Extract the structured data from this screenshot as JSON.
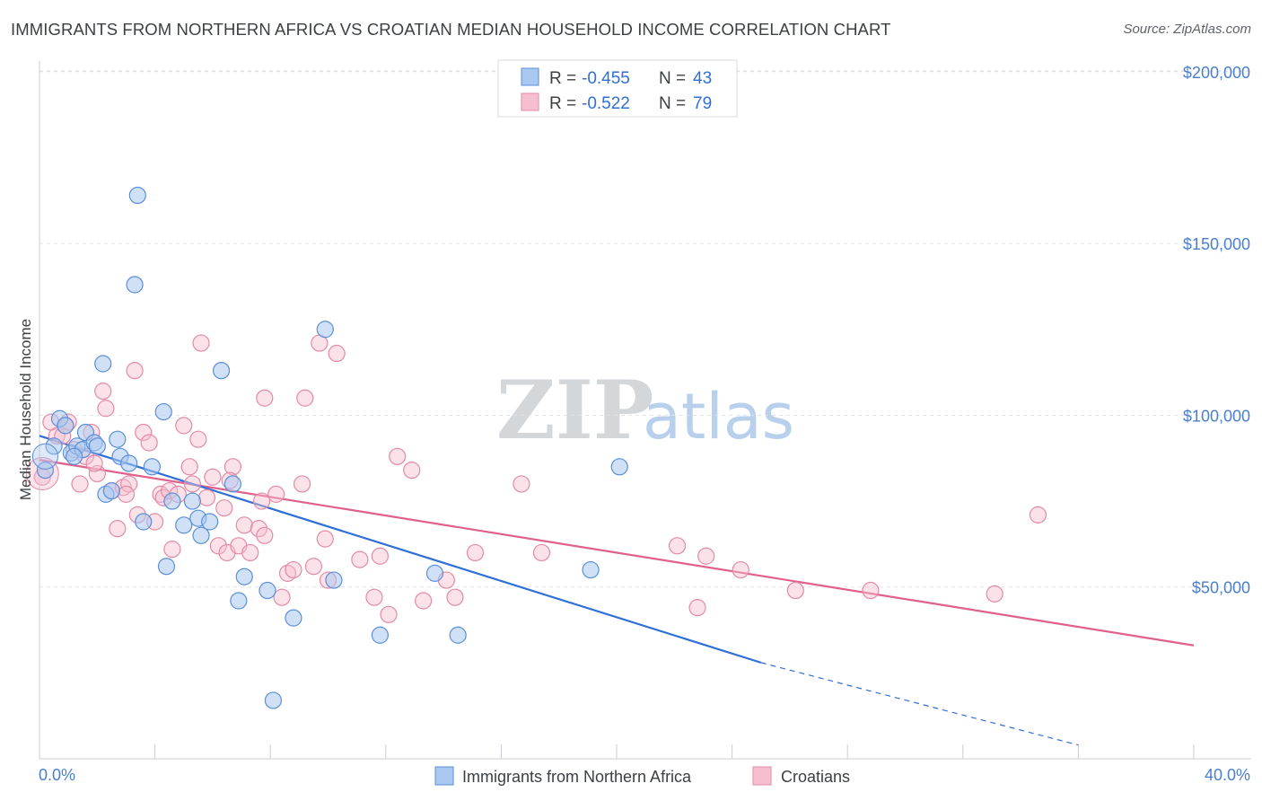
{
  "title": "IMMIGRANTS FROM NORTHERN AFRICA VS CROATIAN MEDIAN HOUSEHOLD INCOME CORRELATION CHART",
  "source": "Source: ZipAtlas.com",
  "watermark": {
    "part1": "ZIP",
    "part2": "atlas"
  },
  "colors": {
    "blue_fill": "#a9c8f0",
    "blue_stroke": "#5a8fd8",
    "blue_line": "#2f6fd6",
    "pink_fill": "#f6bfcf",
    "pink_stroke": "#e38aa6",
    "pink_line": "#e0608c",
    "grid": "#dfe3e8",
    "axis_text": "#4a7fcf"
  },
  "chart_data": {
    "type": "scatter",
    "title": "IMMIGRANTS FROM NORTHERN AFRICA VS CROATIAN MEDIAN HOUSEHOLD INCOME CORRELATION CHART",
    "xlabel": "",
    "ylabel": "Median Household Income",
    "xlim": [
      0,
      40
    ],
    "ylim": [
      0,
      205000
    ],
    "x_tick_labels": [
      "0.0%",
      "40.0%"
    ],
    "y_ticks": [
      50000,
      100000,
      150000,
      200000
    ],
    "y_tick_labels": [
      "$50,000",
      "$100,000",
      "$150,000",
      "$200,000"
    ],
    "grid": "horizontal dashed",
    "legend_position": "top-center",
    "stats": [
      {
        "r_label": "R = ",
        "r": "-0.455",
        "n_label": "N = ",
        "n": "43"
      },
      {
        "r_label": "R = ",
        "r": "-0.522",
        "n_label": "N = ",
        "n": "79"
      }
    ],
    "series": [
      {
        "name": "Immigrants from Northern Africa",
        "color": "#5a8fd8",
        "trend": {
          "x": [
            0,
            25
          ],
          "y": [
            94000,
            28000
          ],
          "dashed_to": [
            36,
            4000
          ]
        },
        "points": [
          [
            0.2,
            84000
          ],
          [
            0.5,
            91000
          ],
          [
            0.7,
            99000
          ],
          [
            0.9,
            97000
          ],
          [
            1.1,
            89000
          ],
          [
            1.3,
            91000
          ],
          [
            1.5,
            90000
          ],
          [
            1.6,
            95000
          ],
          [
            1.9,
            92000
          ],
          [
            2.2,
            115000
          ],
          [
            2.3,
            77000
          ],
          [
            2.5,
            78000
          ],
          [
            2.7,
            93000
          ],
          [
            2.8,
            88000
          ],
          [
            3.1,
            86000
          ],
          [
            3.4,
            164000
          ],
          [
            3.3,
            138000
          ],
          [
            3.6,
            69000
          ],
          [
            3.9,
            85000
          ],
          [
            4.3,
            101000
          ],
          [
            4.4,
            56000
          ],
          [
            4.6,
            75000
          ],
          [
            5.0,
            68000
          ],
          [
            5.3,
            75000
          ],
          [
            5.5,
            70000
          ],
          [
            5.6,
            65000
          ],
          [
            5.9,
            69000
          ],
          [
            6.3,
            113000
          ],
          [
            6.7,
            80000
          ],
          [
            6.9,
            46000
          ],
          [
            7.1,
            53000
          ],
          [
            7.9,
            49000
          ],
          [
            8.1,
            17000
          ],
          [
            8.8,
            41000
          ],
          [
            9.9,
            125000
          ],
          [
            10.2,
            52000
          ],
          [
            11.8,
            36000
          ],
          [
            13.7,
            54000
          ],
          [
            14.5,
            36000
          ],
          [
            19.1,
            55000
          ],
          [
            20.1,
            85000
          ],
          [
            1.2,
            88000
          ],
          [
            2.0,
            91000
          ]
        ]
      },
      {
        "name": "Croatians",
        "color": "#e38aa6",
        "trend": {
          "x": [
            0,
            40
          ],
          "y": [
            87000,
            33000
          ]
        },
        "points": [
          [
            0.1,
            82000
          ],
          [
            0.4,
            98000
          ],
          [
            0.6,
            94000
          ],
          [
            0.8,
            94000
          ],
          [
            1.0,
            98000
          ],
          [
            1.2,
            90000
          ],
          [
            1.4,
            80000
          ],
          [
            1.6,
            88000
          ],
          [
            1.8,
            95000
          ],
          [
            2.0,
            83000
          ],
          [
            2.2,
            107000
          ],
          [
            2.3,
            102000
          ],
          [
            2.5,
            78000
          ],
          [
            2.7,
            67000
          ],
          [
            2.9,
            79000
          ],
          [
            3.1,
            80000
          ],
          [
            3.3,
            113000
          ],
          [
            3.4,
            71000
          ],
          [
            3.6,
            95000
          ],
          [
            3.8,
            92000
          ],
          [
            4.0,
            69000
          ],
          [
            4.2,
            77000
          ],
          [
            4.3,
            76000
          ],
          [
            4.5,
            78000
          ],
          [
            4.6,
            61000
          ],
          [
            4.8,
            77000
          ],
          [
            5.0,
            97000
          ],
          [
            5.2,
            85000
          ],
          [
            5.3,
            80000
          ],
          [
            5.5,
            93000
          ],
          [
            5.6,
            121000
          ],
          [
            5.8,
            76000
          ],
          [
            6.0,
            82000
          ],
          [
            6.2,
            62000
          ],
          [
            6.4,
            73000
          ],
          [
            6.5,
            60000
          ],
          [
            6.7,
            85000
          ],
          [
            6.9,
            62000
          ],
          [
            7.1,
            68000
          ],
          [
            7.3,
            60000
          ],
          [
            7.6,
            67000
          ],
          [
            7.7,
            75000
          ],
          [
            7.8,
            65000
          ],
          [
            7.8,
            105000
          ],
          [
            8.2,
            77000
          ],
          [
            8.4,
            47000
          ],
          [
            8.6,
            54000
          ],
          [
            8.8,
            55000
          ],
          [
            9.1,
            80000
          ],
          [
            9.2,
            105000
          ],
          [
            9.5,
            56000
          ],
          [
            9.7,
            121000
          ],
          [
            9.9,
            64000
          ],
          [
            10.0,
            52000
          ],
          [
            10.3,
            118000
          ],
          [
            11.1,
            58000
          ],
          [
            11.6,
            47000
          ],
          [
            11.8,
            59000
          ],
          [
            12.1,
            42000
          ],
          [
            12.4,
            88000
          ],
          [
            12.9,
            84000
          ],
          [
            13.3,
            46000
          ],
          [
            14.1,
            52000
          ],
          [
            14.4,
            47000
          ],
          [
            15.1,
            60000
          ],
          [
            16.7,
            80000
          ],
          [
            17.4,
            60000
          ],
          [
            22.1,
            62000
          ],
          [
            22.8,
            44000
          ],
          [
            23.1,
            59000
          ],
          [
            24.3,
            55000
          ],
          [
            26.2,
            49000
          ],
          [
            28.8,
            49000
          ],
          [
            33.1,
            48000
          ],
          [
            34.6,
            71000
          ],
          [
            6.6,
            81000
          ],
          [
            3.0,
            77000
          ],
          [
            1.9,
            86000
          ],
          [
            0.9,
            97000
          ]
        ]
      }
    ]
  },
  "legend": {
    "series1": "Immigrants from Northern Africa",
    "series2": "Croatians"
  }
}
